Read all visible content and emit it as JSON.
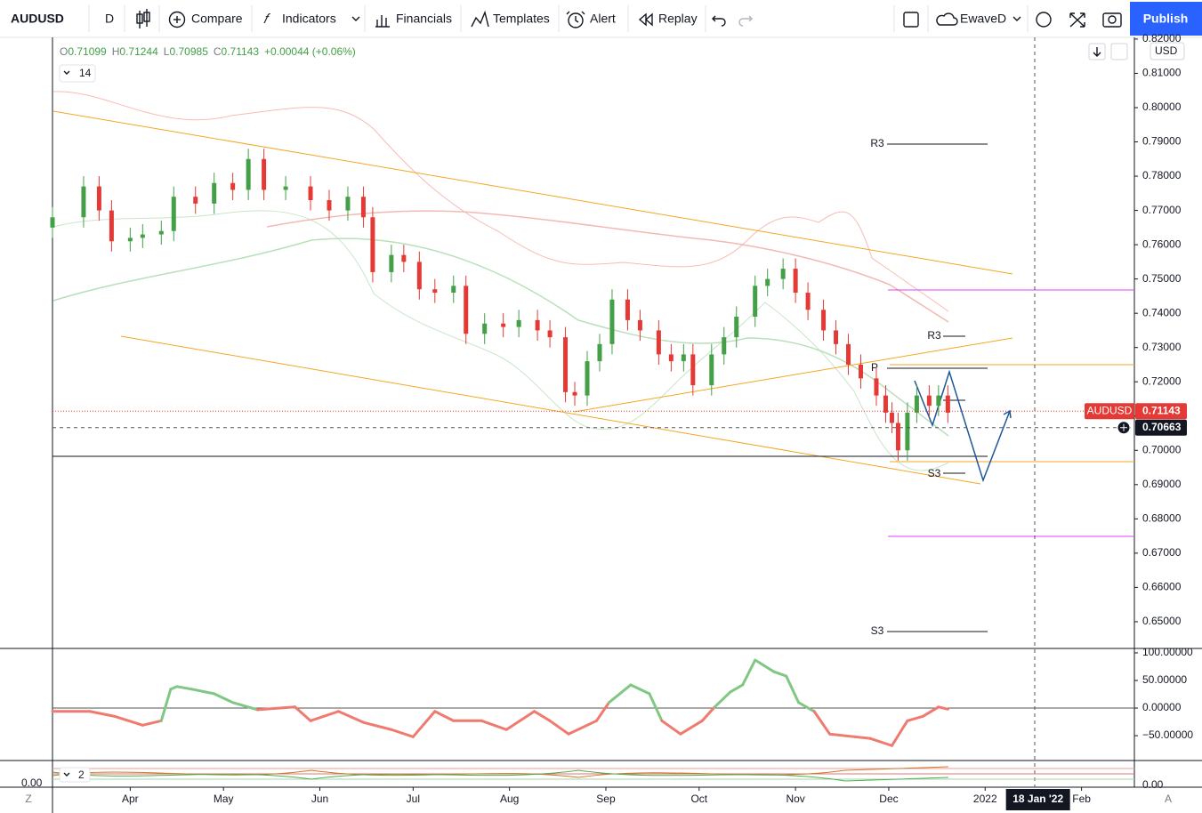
{
  "toolbar": {
    "symbol": "AUDUSD",
    "interval": "D",
    "items": [
      "Compare",
      "Indicators",
      "Financials",
      "Templates",
      "Alert",
      "Replay"
    ],
    "layout": "EwaveD",
    "publish": "Publish"
  },
  "legend": {
    "fields": [
      [
        "O",
        "0.71099"
      ],
      [
        "H",
        "0.71244"
      ],
      [
        "L",
        "0.70985"
      ],
      [
        "C",
        "0.71143"
      ]
    ],
    "change": "+0.00044 (+0.06%)",
    "indicators": "14"
  },
  "currency": "USD",
  "price_tags": [
    {
      "name": "AUDUSD",
      "value": 0.71143
    },
    {
      "value": 0.70663
    }
  ],
  "pivot_labels": [
    "R3",
    "P",
    "R3",
    "S3",
    "S3"
  ],
  "lower_pane": {
    "count": "2",
    "left_value": "0.00",
    "right_value": "0.00"
  },
  "corner": [
    "Z",
    "A"
  ],
  "chart_data": [
    {
      "type": "candlestick",
      "up_color": "#43a047",
      "down_color": "#e53935",
      "x": [
        6,
        16,
        21,
        25,
        31,
        35,
        41,
        45,
        52,
        58,
        64,
        69,
        74,
        81,
        89,
        95,
        101,
        106,
        109,
        115,
        119,
        124,
        129,
        135,
        139,
        145,
        151,
        156,
        162,
        166,
        171,
        174,
        178,
        182,
        186,
        191,
        195,
        201,
        205,
        209,
        212,
        218,
        222,
        226,
        232,
        236,
        241,
        245,
        249,
        254,
        258,
        262,
        266,
        271,
        274,
        276,
        278,
        281,
        284,
        288,
        291,
        294
      ],
      "open": [
        0.765,
        0.768,
        0.777,
        0.77,
        0.761,
        0.762,
        0.763,
        0.764,
        0.774,
        0.772,
        0.778,
        0.776,
        0.785,
        0.776,
        0.777,
        0.773,
        0.77,
        0.774,
        0.768,
        0.752,
        0.757,
        0.755,
        0.747,
        0.746,
        0.748,
        0.734,
        0.737,
        0.736,
        0.738,
        0.735,
        0.733,
        0.717,
        0.716,
        0.726,
        0.731,
        0.744,
        0.738,
        0.735,
        0.728,
        0.726,
        0.728,
        0.719,
        0.728,
        0.733,
        0.739,
        0.748,
        0.75,
        0.753,
        0.746,
        0.741,
        0.735,
        0.731,
        0.725,
        0.721,
        0.716,
        0.711,
        0.708,
        0.7,
        0.711,
        0.716,
        0.713,
        0.716
      ],
      "high": [
        0.771,
        0.78,
        0.78,
        0.773,
        0.765,
        0.766,
        0.767,
        0.777,
        0.777,
        0.781,
        0.781,
        0.788,
        0.788,
        0.78,
        0.78,
        0.776,
        0.777,
        0.777,
        0.771,
        0.76,
        0.76,
        0.758,
        0.75,
        0.751,
        0.751,
        0.74,
        0.74,
        0.741,
        0.741,
        0.738,
        0.736,
        0.72,
        0.729,
        0.734,
        0.747,
        0.747,
        0.741,
        0.738,
        0.731,
        0.731,
        0.731,
        0.731,
        0.736,
        0.742,
        0.751,
        0.753,
        0.756,
        0.756,
        0.749,
        0.744,
        0.738,
        0.734,
        0.728,
        0.724,
        0.719,
        0.714,
        0.711,
        0.714,
        0.719,
        0.719,
        0.719,
        0.719
      ],
      "low": [
        0.762,
        0.765,
        0.767,
        0.758,
        0.758,
        0.759,
        0.76,
        0.761,
        0.769,
        0.769,
        0.773,
        0.773,
        0.773,
        0.773,
        0.77,
        0.767,
        0.767,
        0.765,
        0.749,
        0.749,
        0.752,
        0.744,
        0.743,
        0.743,
        0.731,
        0.731,
        0.733,
        0.733,
        0.732,
        0.73,
        0.714,
        0.713,
        0.713,
        0.723,
        0.728,
        0.735,
        0.732,
        0.725,
        0.723,
        0.723,
        0.716,
        0.716,
        0.725,
        0.73,
        0.736,
        0.745,
        0.747,
        0.743,
        0.738,
        0.732,
        0.728,
        0.722,
        0.718,
        0.713,
        0.708,
        0.705,
        0.697,
        0.697,
        0.708,
        0.71,
        0.71,
        0.708
      ],
      "close": [
        0.768,
        0.777,
        0.77,
        0.761,
        0.762,
        0.763,
        0.764,
        0.774,
        0.772,
        0.778,
        0.776,
        0.785,
        0.776,
        0.777,
        0.773,
        0.77,
        0.774,
        0.768,
        0.752,
        0.757,
        0.755,
        0.747,
        0.746,
        0.748,
        0.734,
        0.737,
        0.736,
        0.738,
        0.735,
        0.733,
        0.717,
        0.716,
        0.726,
        0.731,
        0.744,
        0.738,
        0.735,
        0.728,
        0.726,
        0.728,
        0.719,
        0.728,
        0.733,
        0.739,
        0.748,
        0.75,
        0.753,
        0.746,
        0.741,
        0.735,
        0.731,
        0.725,
        0.721,
        0.716,
        0.711,
        0.708,
        0.7,
        0.711,
        0.716,
        0.713,
        0.716,
        0.711
      ],
      "xlim": [
        6,
        354
      ],
      "xticks": [
        {
          "value": 31,
          "label": "Apr"
        },
        {
          "value": 61,
          "label": "May"
        },
        {
          "value": 92,
          "label": "Jun"
        },
        {
          "value": 122,
          "label": "Jul"
        },
        {
          "value": 153,
          "label": "Aug"
        },
        {
          "value": 184,
          "label": "Sep"
        },
        {
          "value": 214,
          "label": "Oct"
        },
        {
          "value": 245,
          "label": "Nov"
        },
        {
          "value": 275,
          "label": "Dec"
        },
        {
          "value": 306,
          "label": "2022"
        },
        {
          "value": 337,
          "label": "Feb"
        }
      ],
      "crosshair": {
        "x": 323,
        "label": "18 Jan '22"
      },
      "ylim": [
        0.6422,
        0.8205
      ],
      "yticks": [
        {
          "value": 0.82,
          "label": "0.82000"
        },
        {
          "value": 0.81,
          "label": "0.81000"
        },
        {
          "value": 0.8,
          "label": "0.80000"
        },
        {
          "value": 0.79,
          "label": "0.79000"
        },
        {
          "value": 0.78,
          "label": "0.78000"
        },
        {
          "value": 0.77,
          "label": "0.77000"
        },
        {
          "value": 0.76,
          "label": "0.76000"
        },
        {
          "value": 0.75,
          "label": "0.75000"
        },
        {
          "value": 0.74,
          "label": "0.74000"
        },
        {
          "value": 0.73,
          "label": "0.73000"
        },
        {
          "value": 0.72,
          "label": "0.72000"
        },
        {
          "value": 0.71,
          "label": "0.71000"
        },
        {
          "value": 0.7,
          "label": "0.70000"
        },
        {
          "value": 0.69,
          "label": "0.69000"
        },
        {
          "value": 0.68,
          "label": "0.68000"
        },
        {
          "value": 0.67,
          "label": "0.67000"
        },
        {
          "value": 0.66,
          "label": "0.66000"
        },
        {
          "value": 0.65,
          "label": "0.65000"
        }
      ]
    },
    {
      "type": "line",
      "up_color": "#81c784",
      "down_color": "#ef7a6f",
      "x": [
        6,
        18,
        26,
        35,
        41,
        44,
        46,
        51,
        58,
        64,
        72,
        84,
        89,
        98,
        106,
        115,
        122,
        129,
        135,
        144,
        152,
        161,
        166,
        172,
        181,
        185,
        192,
        198,
        202,
        208,
        215,
        219,
        224,
        228,
        232,
        238,
        242,
        246,
        251,
        256,
        264,
        269,
        276,
        281,
        286,
        291,
        294
      ],
      "values": [
        -6,
        -6,
        -15,
        -31,
        -23,
        34,
        39,
        34,
        26,
        10,
        -3,
        2,
        -23,
        -6,
        -26,
        -39,
        -52,
        -6,
        -23,
        -23,
        -39,
        -6,
        -23,
        -47,
        -23,
        10,
        42,
        26,
        -23,
        -47,
        -23,
        2,
        29,
        42,
        87,
        66,
        58,
        10,
        -6,
        -47,
        -52,
        -55,
        -68,
        -23,
        -15,
        2,
        -2
      ],
      "ylim": [
        -95,
        108
      ],
      "yticks": [
        {
          "value": 100,
          "label": "100.00000"
        },
        {
          "value": 50,
          "label": "50.00000"
        },
        {
          "value": 0,
          "label": "0.00000"
        },
        {
          "value": -50,
          "label": "−50.00000"
        }
      ]
    }
  ]
}
